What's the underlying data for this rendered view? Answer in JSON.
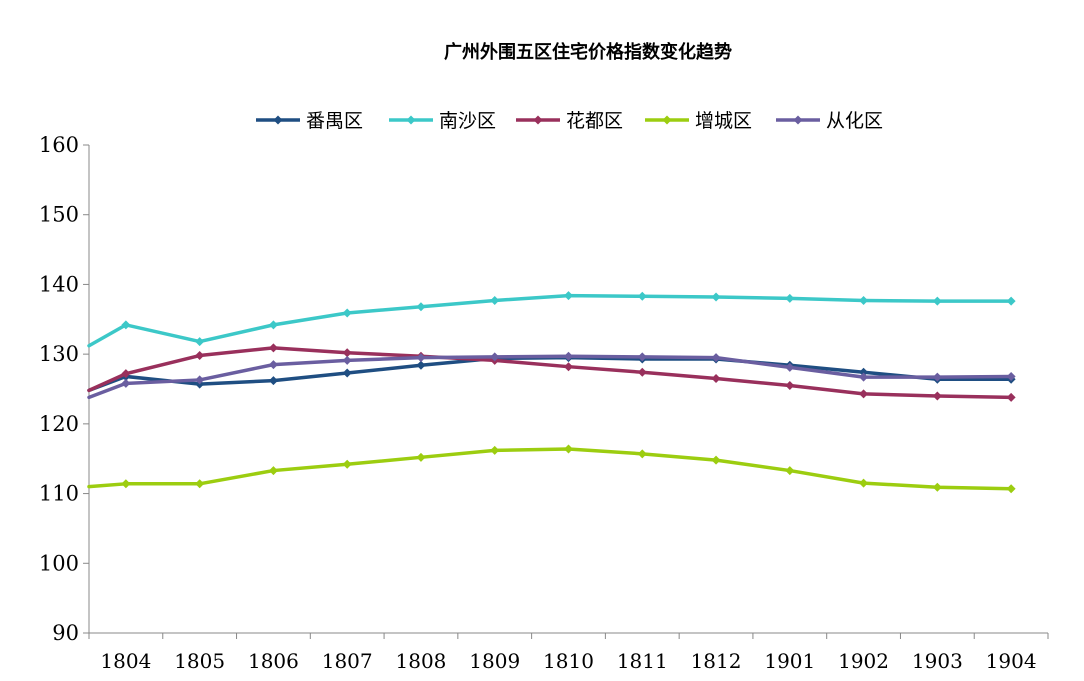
{
  "chart_data": {
    "type": "line",
    "title": "广州外围五区住宅价格指数变化趋势",
    "xlabel": "",
    "ylabel": "",
    "ylim": [
      90,
      160
    ],
    "yticks": [
      "160",
      "150",
      "140",
      "130",
      "120",
      "110",
      "100",
      "90"
    ],
    "categories": [
      "1804",
      "1805",
      "1806",
      "1807",
      "1808",
      "1809",
      "1810",
      "1811",
      "1812",
      "1901",
      "1902",
      "1903",
      "1904"
    ],
    "legend_position": "top",
    "grid": false,
    "series": [
      {
        "name": "番禺区",
        "color": "#1f4e82",
        "start": 124.8,
        "values": [
          126.8,
          125.7,
          126.2,
          127.3,
          128.4,
          129.4,
          129.5,
          129.3,
          129.3,
          128.4,
          127.4,
          126.4,
          126.4
        ]
      },
      {
        "name": "南沙区",
        "color": "#3cc8c8",
        "start": 131.2,
        "values": [
          134.2,
          131.8,
          134.2,
          135.9,
          136.8,
          137.7,
          138.4,
          138.3,
          138.2,
          138.0,
          137.7,
          137.6,
          137.6
        ]
      },
      {
        "name": "花都区",
        "color": "#99305c",
        "start": 124.8,
        "values": [
          127.2,
          129.8,
          130.9,
          130.2,
          129.7,
          129.1,
          128.2,
          127.4,
          126.5,
          125.5,
          124.3,
          124.0,
          123.8
        ]
      },
      {
        "name": "增城区",
        "color": "#9ccd10",
        "start": 111.0,
        "values": [
          111.4,
          111.4,
          113.3,
          114.2,
          115.2,
          116.2,
          116.4,
          115.7,
          114.8,
          113.3,
          111.5,
          110.9,
          110.7
        ]
      },
      {
        "name": "从化区",
        "color": "#6a5ea0",
        "start": 123.8,
        "values": [
          125.8,
          126.3,
          128.5,
          129.1,
          129.5,
          129.6,
          129.7,
          129.6,
          129.5,
          128.1,
          126.7,
          126.7,
          126.8
        ]
      }
    ]
  }
}
